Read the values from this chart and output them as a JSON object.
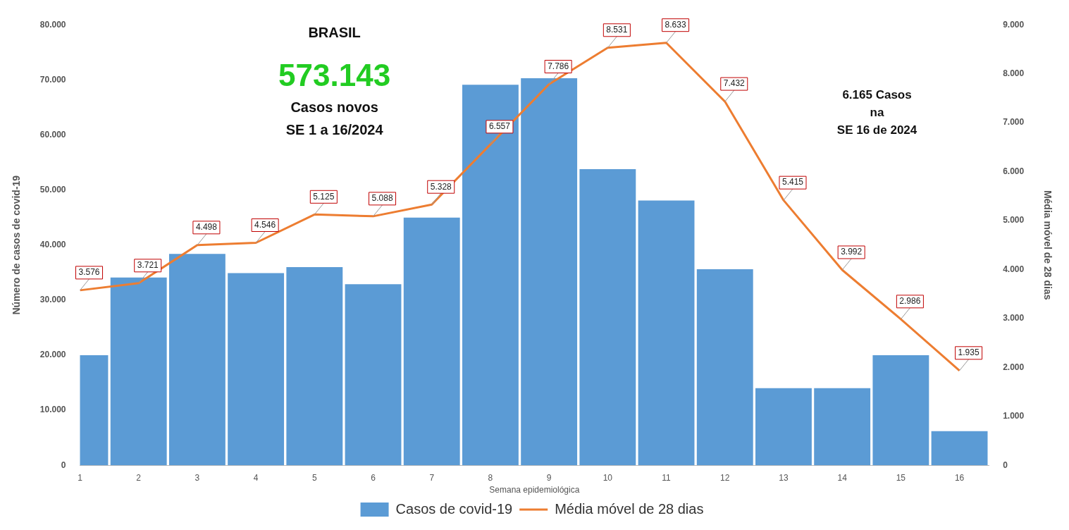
{
  "chart_data": {
    "type": "bar",
    "title": "BRASIL",
    "xlabel": "Semana epidemiológica",
    "ylabel": "Número de casos de covid-19",
    "y2label": "Média móvel de 28 dias",
    "annotations": [
      "573.143",
      "Casos novos",
      "SE 1 a 16/2024",
      "6.165 Casos",
      "na",
      "SE 16 de 2024"
    ],
    "x": [
      1,
      2,
      3,
      4,
      5,
      6,
      7,
      8,
      9,
      10,
      11,
      12,
      13,
      14,
      15,
      16
    ],
    "xlim": [
      1,
      16.5
    ],
    "xticks": [
      1,
      2,
      3,
      4,
      5,
      6,
      7,
      8,
      9,
      10,
      11,
      12,
      13,
      14,
      15,
      16
    ],
    "ylim": [
      0,
      80000
    ],
    "yticks": [
      {
        "value": 0,
        "label": "0"
      },
      {
        "value": 10000,
        "label": "10.000"
      },
      {
        "value": 20000,
        "label": "20.000"
      },
      {
        "value": 30000,
        "label": "30.000"
      },
      {
        "value": 40000,
        "label": "40.000"
      },
      {
        "value": 50000,
        "label": "50.000"
      },
      {
        "value": 60000,
        "label": "60.000"
      },
      {
        "value": 70000,
        "label": "70.000"
      },
      {
        "value": 80000,
        "label": "80.000"
      }
    ],
    "y2lim": [
      0,
      9000
    ],
    "y2ticks": [
      {
        "value": 0,
        "label": "0"
      },
      {
        "value": 1000,
        "label": "1.000"
      },
      {
        "value": 2000,
        "label": "2.000"
      },
      {
        "value": 3000,
        "label": "3.000"
      },
      {
        "value": 4000,
        "label": "4.000"
      },
      {
        "value": 5000,
        "label": "5.000"
      },
      {
        "value": 6000,
        "label": "6.000"
      },
      {
        "value": 7000,
        "label": "7.000"
      },
      {
        "value": 8000,
        "label": "8.000"
      },
      {
        "value": 9000,
        "label": "9.000"
      }
    ],
    "series": [
      {
        "name": "Casos de covid-19",
        "color": "#5b9bd5",
        "values": [
          20000,
          34100,
          38400,
          34900,
          36000,
          32900,
          45000,
          69100,
          70300,
          53800,
          48100,
          35600,
          14000,
          14000,
          20000,
          6200
        ]
      },
      {
        "name": "Média móvel de 28 dias",
        "type": "line",
        "axis": "y2",
        "color": "#ed7d31",
        "values": [
          3576,
          3721,
          4498,
          4546,
          5125,
          5088,
          5328,
          6557,
          7786,
          8531,
          8633,
          7432,
          5415,
          3992,
          2986,
          1935
        ],
        "value_labels": [
          "3.576",
          "3.721",
          "4.498",
          "4.546",
          "5.125",
          "5.088",
          "5.328",
          "6.557",
          "7.786",
          "8.531",
          "8.633",
          "7.432",
          "5.415",
          "3.992",
          "2.986",
          "1.935"
        ]
      }
    ],
    "legend": "bottom",
    "grid": false,
    "marker": "none"
  }
}
